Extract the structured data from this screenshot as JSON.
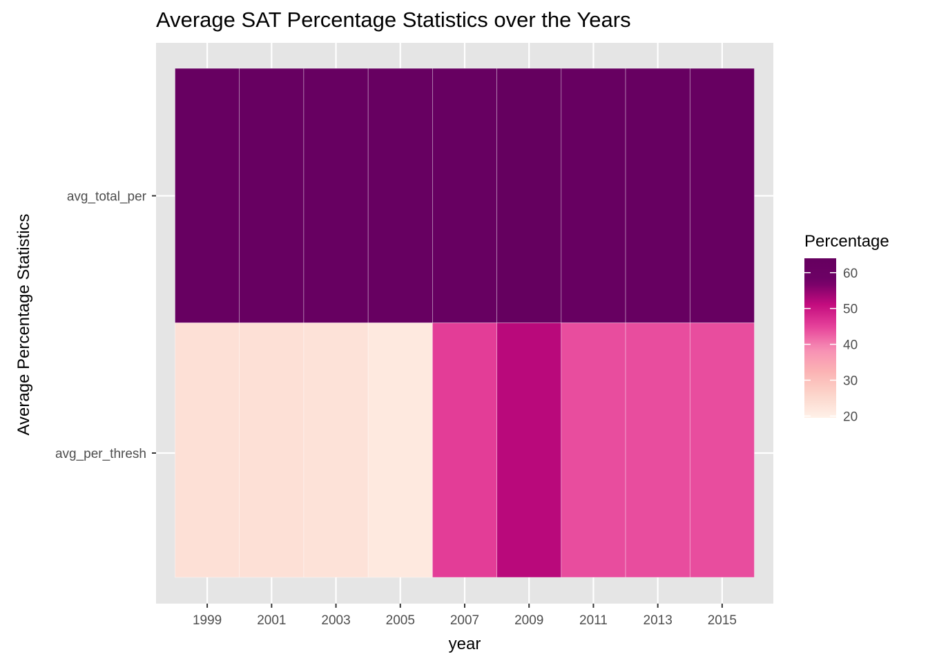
{
  "chart_data": {
    "type": "heatmap",
    "title": "Average SAT Percentage Statistics over the Years",
    "xlabel": "year",
    "ylabel": "Average Percentage Statistics",
    "x_categories": [
      1999,
      2001,
      2003,
      2005,
      2007,
      2009,
      2011,
      2013,
      2015
    ],
    "x_tick_labels": [
      "1999",
      "2001",
      "2003",
      "2005",
      "2007",
      "2009",
      "2011",
      "2013",
      "2015"
    ],
    "y_categories": [
      "avg_total_per",
      "avg_per_thresh"
    ],
    "values": {
      "avg_total_per": [
        62.5,
        62.5,
        62.5,
        62.5,
        62.5,
        64.0,
        62.5,
        62.5,
        62.5
      ],
      "avg_per_thresh": [
        23.5,
        23.5,
        23.0,
        21.5,
        45.5,
        52.0,
        44.0,
        44.0,
        44.0
      ]
    },
    "legend": {
      "title": "Percentage",
      "ticks": [
        20,
        30,
        40,
        50,
        60
      ],
      "tick_labels": [
        "20",
        "30",
        "40",
        "50",
        "60"
      ],
      "range": [
        19.5,
        64.0
      ],
      "position": "right"
    },
    "colorscale": [
      "#fff1e8",
      "#fcd6cb",
      "#fbb4b4",
      "#f78fb4",
      "#e6429a",
      "#c20a7e",
      "#6e0166",
      "#65005f"
    ],
    "panel_background": "#e5e5e5",
    "grid_color": "#ffffff",
    "grid": true
  }
}
